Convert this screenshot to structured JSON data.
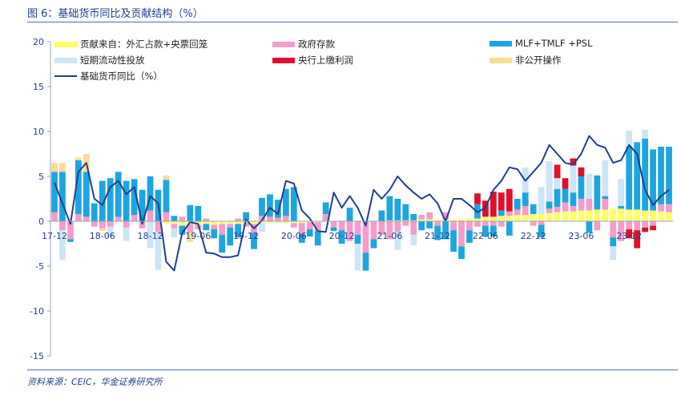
{
  "title": "图 6：基础货币同比及贡献结构（%）",
  "source": "资料来源：CEIC，华金证券研究所",
  "chart_data": {
    "type": "bar",
    "stacked": true,
    "title": "基础货币同比及贡献结构（%）",
    "ylim": [
      -15,
      20
    ],
    "yticks": [
      -15,
      -10,
      -5,
      0,
      5,
      10,
      15,
      20
    ],
    "xtick_labels": [
      "17-12",
      "18-06",
      "18-12",
      "19-06",
      "19-12",
      "20-06",
      "20-12",
      "21-06",
      "21-12",
      "22-06",
      "22-12",
      "23-06",
      "23-12"
    ],
    "xtick_index": [
      0,
      6,
      12,
      18,
      24,
      30,
      36,
      42,
      48,
      54,
      60,
      66,
      72
    ],
    "periods": 78,
    "legend": [
      {
        "name": "贡献来自：外汇占款+央票回笼",
        "color": "#ffff66",
        "kind": "bar"
      },
      {
        "name": "政府存款",
        "color": "#f59ccc",
        "kind": "bar"
      },
      {
        "name": "MLF+TMLF +PSL",
        "color": "#1ea5e0",
        "kind": "bar"
      },
      {
        "name": "短期流动性投放",
        "color": "#cde6f6",
        "kind": "bar"
      },
      {
        "name": "央行上缴利润",
        "color": "#e0102a",
        "kind": "bar"
      },
      {
        "name": "非公开操作",
        "color": "#fadc96",
        "kind": "bar"
      },
      {
        "name": "基础货币同比（%）",
        "color": "#1f3f8f",
        "kind": "line"
      }
    ],
    "series": [
      {
        "name": "外汇占款+央票回笼",
        "values": [
          0,
          0,
          0,
          0,
          0,
          0,
          0,
          0,
          0,
          0,
          0,
          0,
          0,
          0,
          -0.3,
          -0.3,
          -0.5,
          -0.3,
          -0.4,
          -0.3,
          -0.4,
          -0.3,
          -0.3,
          -0.3,
          -0.2,
          -0.3,
          -0.2,
          -0.2,
          -0.2,
          -0.2,
          -0.2,
          -0.2,
          -0.1,
          -0.1,
          0,
          0,
          0,
          0,
          0,
          0,
          0,
          0,
          0.1,
          0.1,
          0.1,
          0.1,
          0.2,
          0.2,
          0.2,
          0.2,
          0.2,
          0.2,
          0.3,
          0.3,
          0.5,
          0.5,
          0.6,
          0.6,
          0.7,
          0.7,
          0.8,
          0.8,
          0.9,
          1.0,
          1.1,
          1.1,
          1.2,
          1.2,
          1.3,
          1.3,
          1.4,
          1.4,
          1.3,
          1.3,
          1.2,
          1.2,
          1.1,
          1.0
        ]
      },
      {
        "name": "政府存款",
        "values": [
          1.0,
          -1.0,
          -2.0,
          0.8,
          0.5,
          -0.6,
          -0.8,
          -0.6,
          0.5,
          -0.7,
          0.7,
          -0.8,
          1.2,
          -1.2,
          1.0,
          -0.5,
          0.5,
          -1.0,
          -0.5,
          0.3,
          -0.5,
          -1.2,
          -0.4,
          0.3,
          -0.4,
          -1.0,
          0.6,
          0.5,
          0.4,
          0.6,
          -0.5,
          -1.2,
          -0.8,
          -1.0,
          0.8,
          -0.7,
          -1.0,
          -2.2,
          -1.5,
          -3.5,
          -2.0,
          -1.5,
          -2.0,
          -1.2,
          -0.5,
          -1.5,
          0.5,
          0.8,
          -0.5,
          0.8,
          -1.0,
          -2.8,
          -1.0,
          -0.6,
          -0.5,
          -0.5,
          -0.6,
          0.5,
          0.6,
          1.0,
          -0.5,
          -0.4,
          0.5,
          0.6,
          1.0,
          0.6,
          1.3,
          1.3,
          -1.0,
          1.2,
          -1.8,
          -2.2,
          -0.9,
          -1.0,
          -0.7,
          -0.5,
          0.8,
          0.9
        ]
      },
      {
        "name": "MLF+TMLF +PSL",
        "values": [
          4.5,
          5.5,
          -0.3,
          6.0,
          5.0,
          2.0,
          4.5,
          4.8,
          5.0,
          4.5,
          4.0,
          3.5,
          3.8,
          3.5,
          3.6,
          0.6,
          -1.0,
          1.8,
          1.7,
          -0.7,
          -1.0,
          -2.0,
          -2.0,
          -1.5,
          1.0,
          -1.8,
          2.0,
          2.5,
          2.0,
          3.0,
          3.8,
          -1.0,
          -0.8,
          -1.6,
          1.3,
          -0.4,
          -1.5,
          1.5,
          -1.0,
          -2.0,
          -1.0,
          1.2,
          2.7,
          2.4,
          1.8,
          0.7,
          -1.0,
          -0.8,
          -1.6,
          -2.0,
          -2.4,
          -1.4,
          -1.4,
          1.6,
          -1.2,
          -1.2,
          0.6,
          -1.6,
          1.2,
          1.5,
          1.1,
          -1.4,
          0.8,
          2.0,
          1.5,
          1.5,
          2.5,
          -1.3,
          3.8,
          0.3,
          -1.0,
          0.3,
          7.0,
          7.5,
          8.0,
          6.8,
          6.4,
          6.4
        ]
      },
      {
        "name": "短期流动性投放",
        "values": [
          0,
          -3.3,
          0,
          0,
          0,
          0,
          0,
          -1.2,
          0,
          -1.5,
          0,
          0,
          -3.0,
          -4.2,
          0,
          -1.0,
          0,
          0,
          0,
          0,
          0,
          0,
          0,
          0,
          0,
          0,
          -1.0,
          0,
          0,
          0,
          0,
          0,
          0,
          0,
          0,
          0,
          0,
          0,
          -3.0,
          0,
          0,
          0,
          0,
          -2.0,
          0,
          -1.2,
          0,
          0,
          0,
          0,
          0,
          0,
          0,
          0,
          0,
          0,
          0,
          0,
          0,
          2.8,
          0,
          3.0,
          4.5,
          1.2,
          0,
          3.0,
          0,
          2.8,
          0,
          4.0,
          -1.5,
          3.0,
          1.8,
          0,
          1.0,
          0,
          0,
          0
        ]
      },
      {
        "name": "央行上缴利润",
        "values": [
          0,
          0,
          0,
          0,
          0,
          0,
          0,
          0,
          0,
          0,
          0,
          0,
          0,
          0,
          0,
          0,
          0,
          0,
          0,
          0,
          0,
          0,
          0,
          0,
          0,
          0,
          0,
          0,
          0,
          0,
          0,
          0,
          0,
          0,
          0,
          0,
          0,
          0,
          0,
          0,
          0,
          0,
          0,
          0,
          0,
          0,
          0,
          0,
          0,
          0,
          0,
          0,
          0,
          1.2,
          1.8,
          2.8,
          2.0,
          2.5,
          0,
          0,
          0,
          0,
          0,
          1.5,
          1.2,
          0.8,
          1.0,
          0,
          0,
          0,
          0,
          0,
          -1.0,
          -2.0,
          -0.5,
          -0.5,
          0,
          0
        ]
      },
      {
        "name": "非公开操作",
        "values": [
          1.0,
          1.0,
          0,
          0.3,
          2.0,
          0,
          -0.3,
          0,
          0,
          0,
          0,
          0,
          0,
          0,
          0.5,
          0,
          0,
          -1.0,
          0,
          0,
          0,
          0,
          0,
          0,
          0,
          0,
          0,
          0,
          0,
          0,
          0,
          0,
          0,
          0,
          0,
          0,
          0,
          0,
          0,
          0,
          0,
          0,
          0,
          0,
          0,
          0,
          0,
          0,
          0,
          0,
          0,
          0,
          0,
          0,
          0,
          0,
          0,
          0,
          0,
          0,
          0,
          0,
          0,
          0,
          0,
          0,
          0,
          0,
          0,
          0,
          0,
          0,
          0,
          0,
          0,
          0,
          0,
          0
        ]
      },
      {
        "name": "基础货币同比（%）",
        "kind": "line",
        "values": [
          4.3,
          2.0,
          -0.3,
          5.5,
          6.5,
          2.5,
          1.8,
          3.8,
          4.5,
          3.0,
          3.8,
          -0.3,
          2.8,
          2.0,
          -4.5,
          -5.5,
          -1.3,
          -0.1,
          -0.3,
          -3.5,
          -3.6,
          -4.0,
          -4.0,
          -3.8,
          0.2,
          -0.8,
          0.1,
          1.5,
          0.8,
          4.5,
          4.2,
          1.2,
          0.3,
          -1.1,
          -1.2,
          3.2,
          1.5,
          2.8,
          1.5,
          -0.5,
          3.5,
          2.5,
          3.5,
          5.0,
          4.0,
          3.2,
          2.5,
          3.0,
          2.0,
          0,
          2.5,
          2.5,
          1.8,
          1.0,
          1.5,
          3.5,
          4.5,
          6.0,
          5.8,
          4.5,
          5.5,
          6.5,
          8.5,
          7.5,
          6.5,
          6.3,
          7.5,
          9.5,
          8.5,
          8.2,
          6.5,
          6.8,
          8.5,
          7.5,
          3.5,
          1.8,
          2.8,
          3.5
        ]
      }
    ]
  }
}
